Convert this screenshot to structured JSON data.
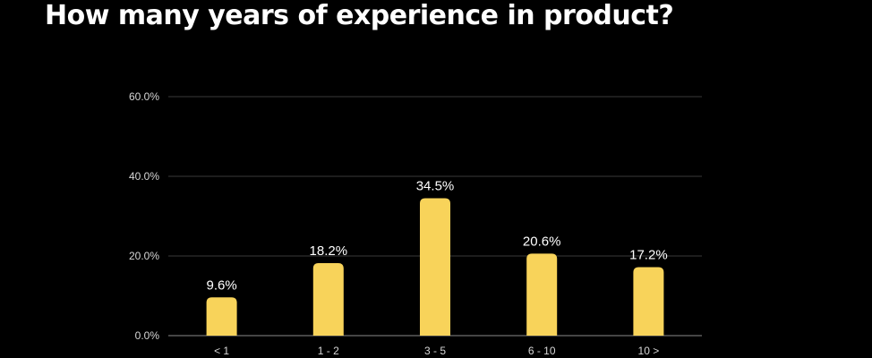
{
  "header": {
    "title": "How many years of experience in product?"
  },
  "colors": {
    "background": "#000000",
    "bar": "#f8d35a",
    "text": "#ffffff",
    "grid": "#3a3a3a"
  },
  "chart_data": {
    "type": "bar",
    "title": "How many years of experience in product?",
    "xlabel": "",
    "ylabel": "",
    "categories": [
      "< 1",
      "1 - 2",
      "3 - 5",
      "6 - 10",
      "10 >"
    ],
    "values": [
      9.6,
      18.2,
      34.5,
      20.6,
      17.2
    ],
    "value_labels": [
      "9.6%",
      "18.2%",
      "34.5%",
      "20.6%",
      "17.2%"
    ],
    "yticks": [
      0,
      20,
      40,
      60
    ],
    "ytick_labels": [
      "0.0%",
      "20.0%",
      "40.0%",
      "60.0%"
    ],
    "ylim": [
      0,
      60
    ],
    "grid": true,
    "legend": "none"
  }
}
